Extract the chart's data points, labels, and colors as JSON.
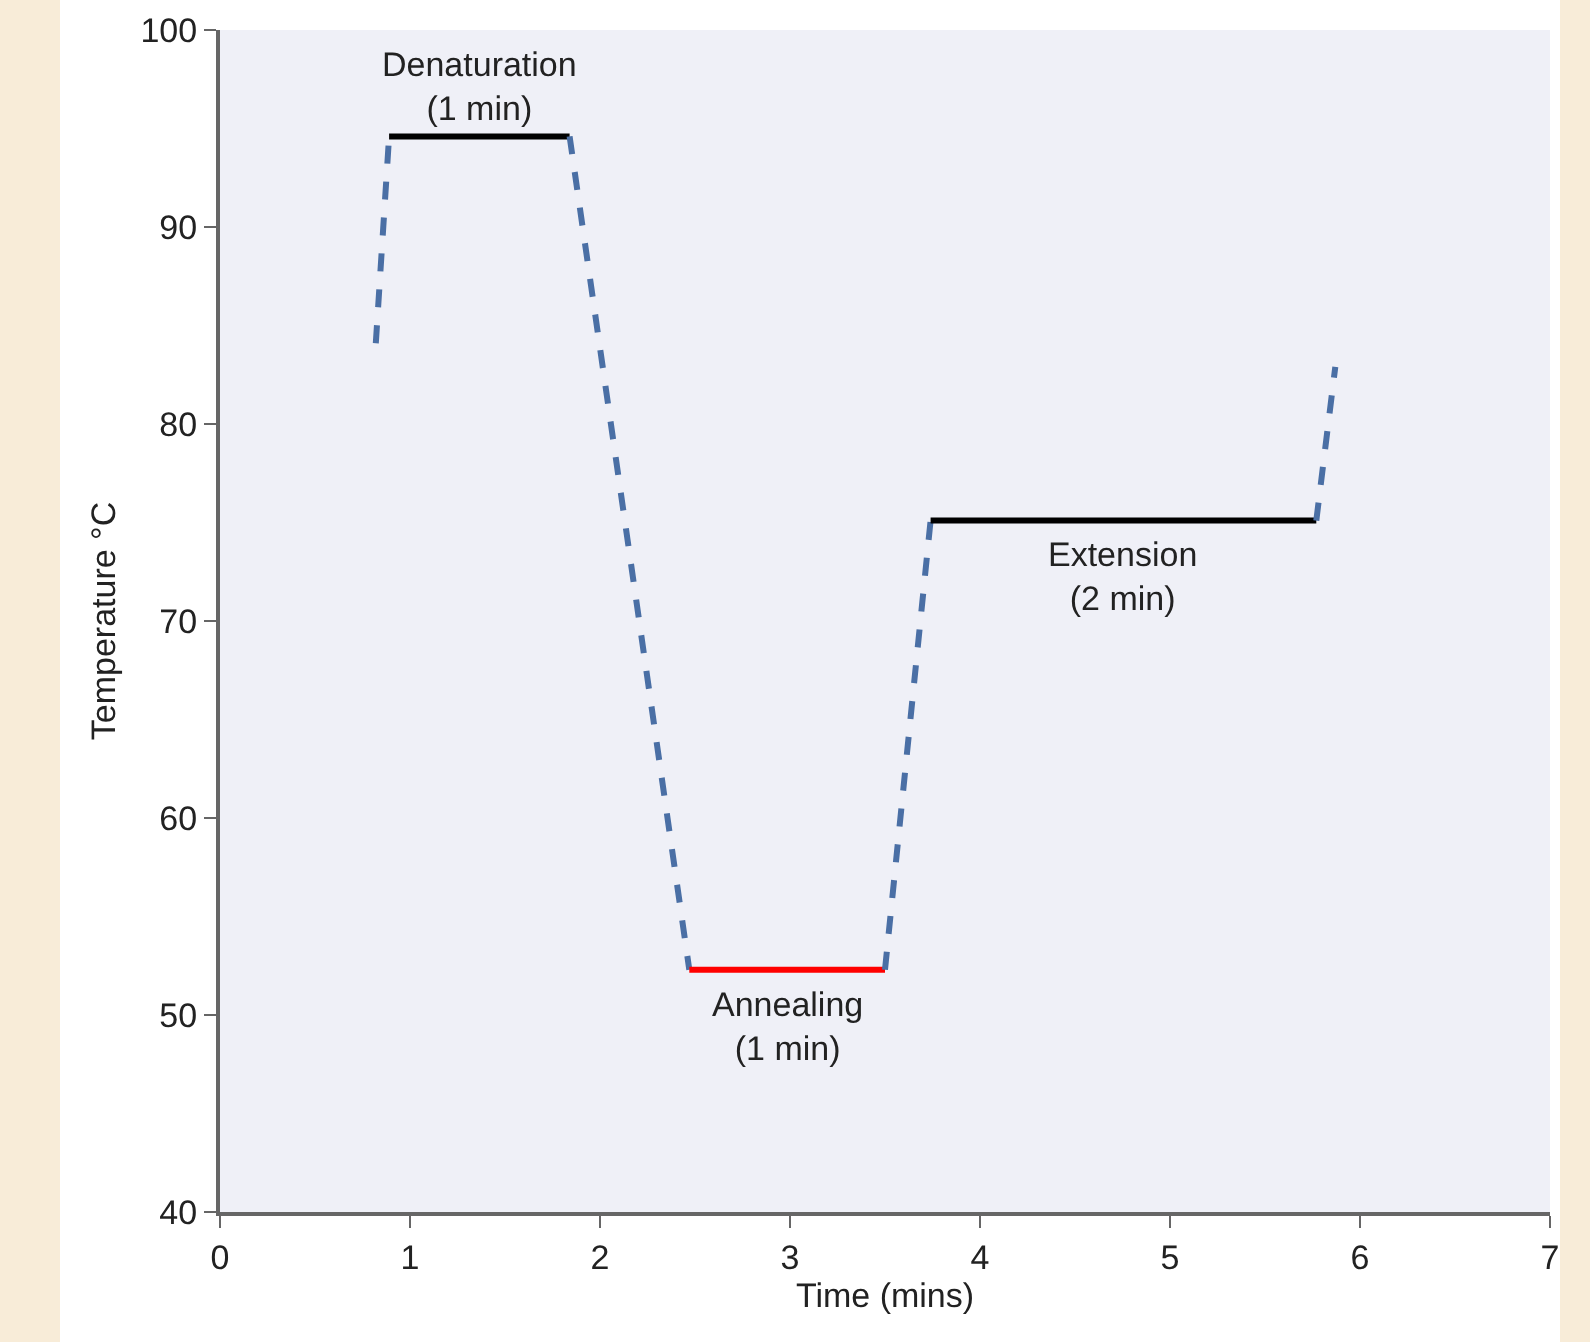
{
  "chart_data": {
    "type": "line",
    "xlabel": "Time (mins)",
    "ylabel": "Temperature °C",
    "xlim": [
      0,
      7
    ],
    "xticks": [
      0,
      1,
      2,
      3,
      4,
      5,
      6,
      7
    ],
    "ylim": [
      40,
      100
    ],
    "yticks": [
      40,
      50,
      60,
      70,
      80,
      90,
      100
    ],
    "grid": false,
    "marker": "none",
    "series": [
      {
        "color": "#4a6fa5",
        "line_style": "dashed",
        "x": [
          0.82,
          0.89
        ],
        "values": [
          84.1,
          94.6
        ]
      },
      {
        "color": "#000000",
        "line_style": "solid",
        "x": [
          0.89,
          1.84
        ],
        "values": [
          94.6,
          94.6
        ]
      },
      {
        "color": "#4a6fa5",
        "line_style": "dashed",
        "x": [
          1.84,
          2.47
        ],
        "values": [
          94.6,
          52.3
        ]
      },
      {
        "color": "#ff0000",
        "line_style": "solid",
        "x": [
          2.47,
          3.5
        ],
        "values": [
          52.3,
          52.3
        ]
      },
      {
        "color": "#4a6fa5",
        "line_style": "dashed",
        "x": [
          3.5,
          3.74
        ],
        "values": [
          52.3,
          75.1
        ]
      },
      {
        "color": "#000000",
        "line_style": "solid",
        "x": [
          3.74,
          5.77
        ],
        "values": [
          75.1,
          75.1
        ]
      },
      {
        "color": "#4a6fa5",
        "line_style": "dashed",
        "x": [
          5.77,
          5.87
        ],
        "values": [
          75.1,
          82.9
        ]
      }
    ],
    "annotations": [
      "Denaturation\n(1 min)",
      "Annealing\n(1 min)",
      "Extension\n(2 min)"
    ]
  }
}
